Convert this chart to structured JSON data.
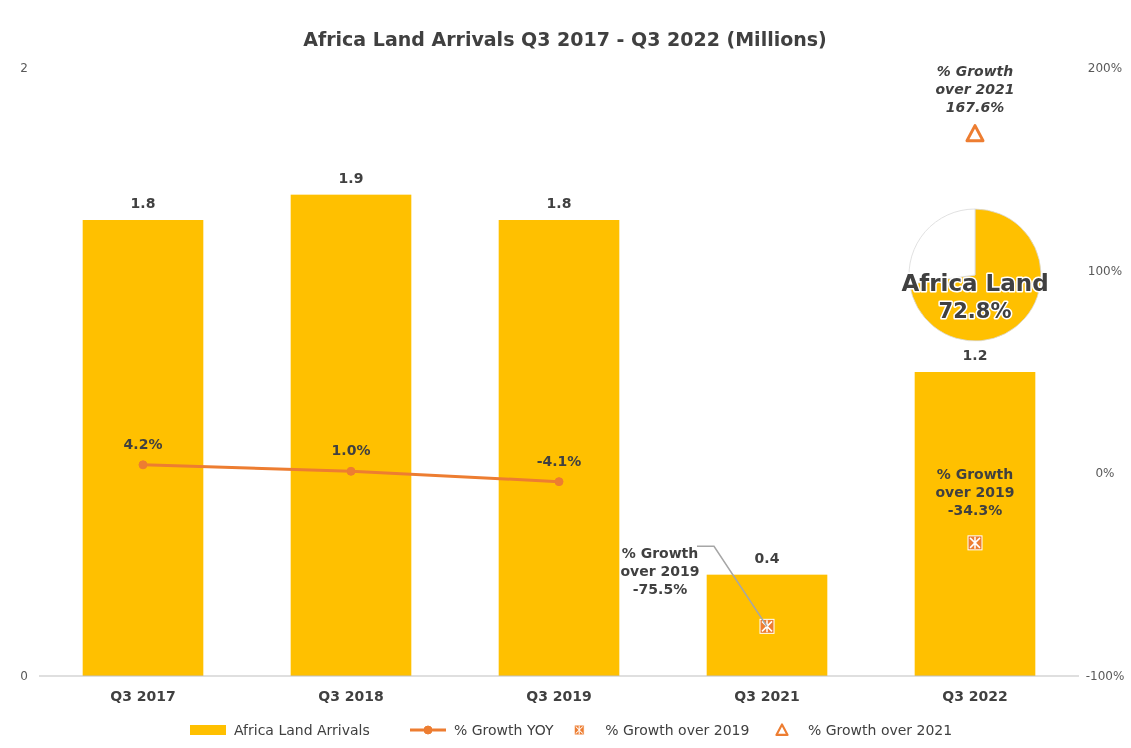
{
  "chart_data": [
    {
      "type": "bar",
      "title": "Africa Land Arrivals Q3 2017 - Q3 2022 (Millions)",
      "categories": [
        "Q3 2017",
        "Q3 2018",
        "Q3 2019",
        "Q3 2021",
        "Q3 2022"
      ],
      "ylim": [
        0,
        2.4
      ],
      "yticks": [
        0,
        {
          "value": 2.4,
          "label": "2"
        }
      ],
      "y2lim": [
        -100,
        200
      ],
      "y2ticks": [
        {
          "value": -100,
          "label": "-100%"
        },
        {
          "value": 0,
          "label": "0%"
        },
        {
          "value": 100,
          "label": "100%"
        },
        {
          "value": 200,
          "label": "200%"
        }
      ],
      "grid": false,
      "legend": "bottom",
      "series": [
        {
          "name": "Africa Land Arrivals",
          "type": "bar",
          "color": "#ffc000",
          "values": [
            1.8,
            1.9,
            1.8,
            0.4,
            1.2
          ],
          "value_labels": [
            "1.8",
            "1.9",
            "1.8",
            "0.4",
            "1.2"
          ]
        },
        {
          "name": "% Growth YOY",
          "type": "line",
          "axis": "y2",
          "color": "#ed7d31",
          "marker": "circle",
          "values": [
            4.2,
            1.0,
            -4.1,
            null,
            null
          ],
          "value_labels": [
            "4.2%",
            "1.0%",
            "-4.1%",
            null,
            null
          ]
        },
        {
          "name": "% Growth over 2019",
          "type": "scatter",
          "axis": "y2",
          "color": "#ed7d31",
          "marker": "square",
          "values": [
            null,
            null,
            null,
            -75.5,
            -34.3
          ],
          "value_labels": [
            null,
            null,
            null,
            "% Growth over 2019 -75.5%",
            "% Growth over 2019 -34.3%"
          ]
        },
        {
          "name": "% Growth over 2021",
          "type": "scatter",
          "axis": "y2",
          "color": "#ed7d31",
          "marker": "triangle",
          "values": [
            null,
            null,
            null,
            null,
            167.6
          ],
          "value_labels": [
            null,
            null,
            null,
            null,
            "% Growth over 2021 167.6%"
          ]
        }
      ]
    },
    {
      "type": "pie",
      "categories": [
        "Africa Land",
        null
      ],
      "values": [
        72.8,
        27.2
      ],
      "colors": [
        "#ffc000",
        "#ffffff"
      ],
      "value_labels": [
        "72.8%",
        null
      ]
    }
  ]
}
